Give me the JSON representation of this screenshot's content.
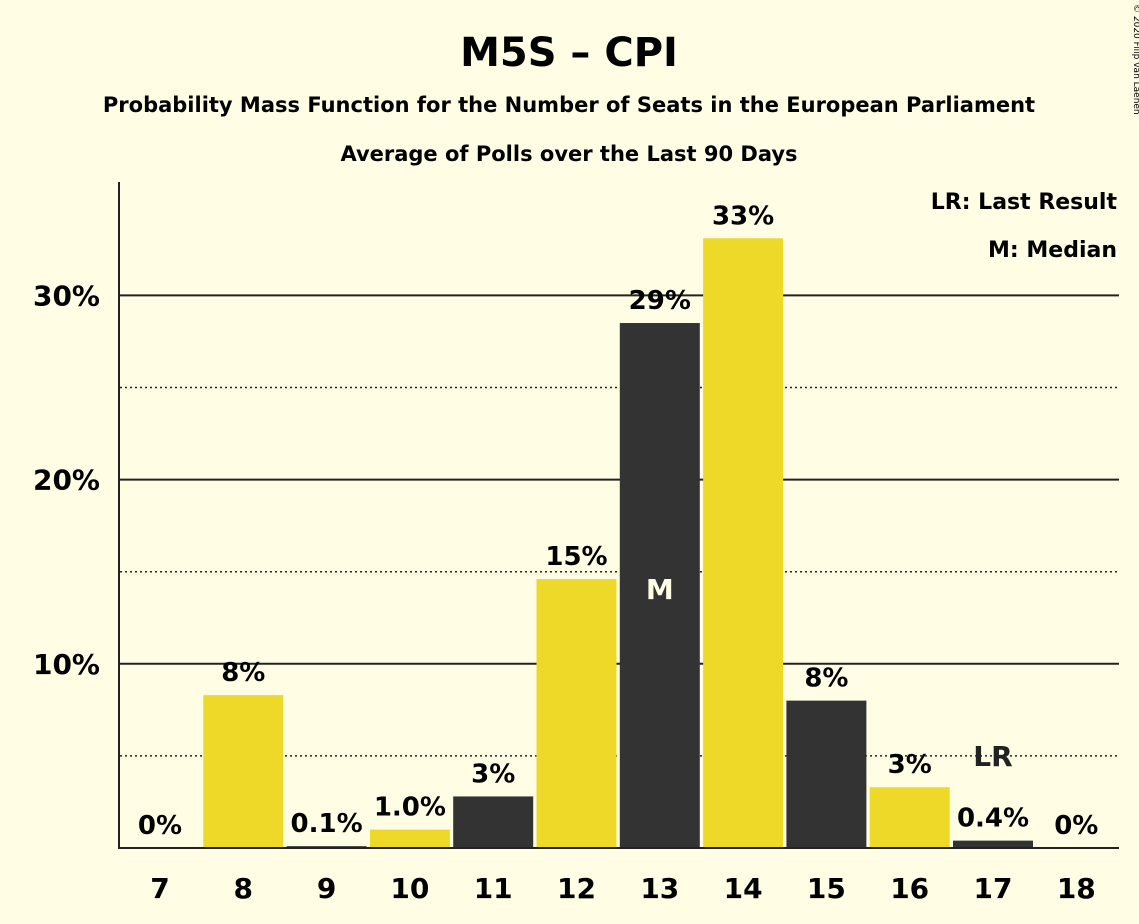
{
  "title": "M5S – CPI",
  "subtitle": "Probability Mass Function for the Number of Seats in the European Parliament",
  "subtitle2": "Average of Polls over the Last 90 Days",
  "legend": {
    "lr": "LR: Last Result",
    "m": "M: Median"
  },
  "copyright": "© 2020 Filip van Laenen",
  "colors": {
    "yellow": "#eed928",
    "dark": "#333333",
    "background": "#fffde4"
  },
  "chart_data": {
    "type": "bar",
    "categories": [
      "7",
      "8",
      "9",
      "10",
      "11",
      "12",
      "13",
      "14",
      "15",
      "16",
      "17",
      "18"
    ],
    "values": [
      0,
      8.3,
      0.1,
      1.0,
      2.8,
      14.6,
      28.5,
      33.1,
      8.0,
      3.3,
      0.4,
      0
    ],
    "labels": [
      "0%",
      "8%",
      "0.1%",
      "1.0%",
      "3%",
      "15%",
      "29%",
      "33%",
      "8%",
      "3%",
      "0.4%",
      "0%"
    ],
    "bar_colors": [
      "yellow",
      "yellow",
      "dark",
      "yellow",
      "dark",
      "yellow",
      "dark",
      "yellow",
      "dark",
      "yellow",
      "dark",
      "yellow"
    ],
    "ylim": [
      0,
      36
    ],
    "yticks": [
      10,
      20,
      30
    ],
    "ytick_labels": [
      "10%",
      "20%",
      "30%"
    ],
    "minor_gridlines": [
      5,
      15,
      25
    ],
    "median": "13",
    "median_marker": "M",
    "last_result": "17",
    "last_result_marker": "LR",
    "legend_position": "top-right"
  }
}
